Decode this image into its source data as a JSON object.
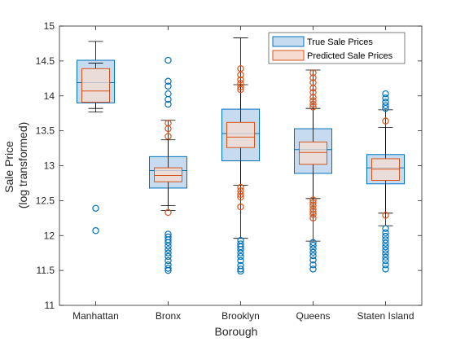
{
  "chart_data": {
    "type": "boxplot",
    "xlabel": "Borough",
    "ylabel": [
      "Sale Price",
      "(log transformed)"
    ],
    "ylim": [
      11,
      15
    ],
    "yticks": [
      11,
      11.5,
      12,
      12.5,
      13,
      13.5,
      14,
      14.5,
      15
    ],
    "categories": [
      "Manhattan",
      "Bronx",
      "Brooklyn",
      "Queens",
      "Staten Island"
    ],
    "legend_position": "top-right",
    "grid": false,
    "series": [
      {
        "name": "True Sale Prices",
        "edge_color": "#0072BD",
        "fill_color": "#C6DBEF",
        "boxes": [
          {
            "q1": 13.9,
            "median": 14.19,
            "q3": 14.51,
            "whisker_low": 13.77,
            "whisker_high": 14.78,
            "outliers": [
              12.39,
              12.07
            ]
          },
          {
            "q1": 12.68,
            "median": 12.93,
            "q3": 13.13,
            "whisker_low": 12.43,
            "whisker_high": 13.65,
            "outliers": [
              14.51,
              14.21,
              14.14,
              14.03,
              13.95,
              13.88,
              12.02,
              11.98,
              11.94,
              11.9,
              11.85,
              11.8,
              11.75,
              11.7,
              11.64,
              11.58,
              11.53,
              11.5
            ]
          },
          {
            "q1": 13.07,
            "median": 13.46,
            "q3": 13.81,
            "whisker_low": 11.96,
            "whisker_high": 14.83,
            "outliers": [
              11.93,
              11.88,
              11.84,
              11.8,
              11.75,
              11.7,
              11.64,
              11.57,
              11.52,
              11.49
            ]
          },
          {
            "q1": 12.89,
            "median": 13.23,
            "q3": 13.53,
            "whisker_low": 11.92,
            "whisker_high": 14.37,
            "outliers": [
              11.9,
              11.86,
              11.81,
              11.76,
              11.71,
              11.65,
              11.58,
              11.52
            ]
          },
          {
            "q1": 12.74,
            "median": 12.97,
            "q3": 13.16,
            "whisker_low": 12.14,
            "whisker_high": 13.8,
            "outliers": [
              14.03,
              13.97,
              13.91,
              13.86,
              13.82,
              12.1,
              12.04,
              11.99,
              11.94,
              11.89,
              11.84,
              11.79,
              11.74,
              11.69,
              11.64,
              11.58,
              11.52
            ]
          }
        ]
      },
      {
        "name": "Predicted Sale Prices",
        "edge_color": "#D95319",
        "fill_color": "#F6DCD0",
        "boxes": [
          {
            "q1": 13.91,
            "median": 14.07,
            "q3": 14.39,
            "whisker_low": 13.82,
            "whisker_high": 14.47,
            "outliers": []
          },
          {
            "q1": 12.77,
            "median": 12.86,
            "q3": 12.97,
            "whisker_low": 12.36,
            "whisker_high": 13.37,
            "outliers": [
              13.61,
              13.53,
              13.42,
              12.33
            ]
          },
          {
            "q1": 13.26,
            "median": 13.41,
            "q3": 13.62,
            "whisker_low": 12.72,
            "whisker_high": 14.16,
            "outliers": [
              14.39,
              14.3,
              14.23,
              14.18,
              14.13,
              14.09,
              12.69,
              12.64,
              12.59,
              12.55,
              12.41
            ]
          },
          {
            "q1": 13.02,
            "median": 13.19,
            "q3": 13.34,
            "whisker_low": 12.53,
            "whisker_high": 13.82,
            "outliers": [
              14.33,
              14.26,
              14.19,
              14.11,
              14.05,
              13.98,
              13.93,
              13.88,
              13.84,
              12.51,
              12.47,
              12.43,
              12.38,
              12.34,
              12.3,
              12.25
            ]
          },
          {
            "q1": 12.79,
            "median": 12.95,
            "q3": 13.1,
            "whisker_low": 12.32,
            "whisker_high": 13.55,
            "outliers": [
              13.64,
              12.29
            ]
          }
        ]
      }
    ]
  }
}
